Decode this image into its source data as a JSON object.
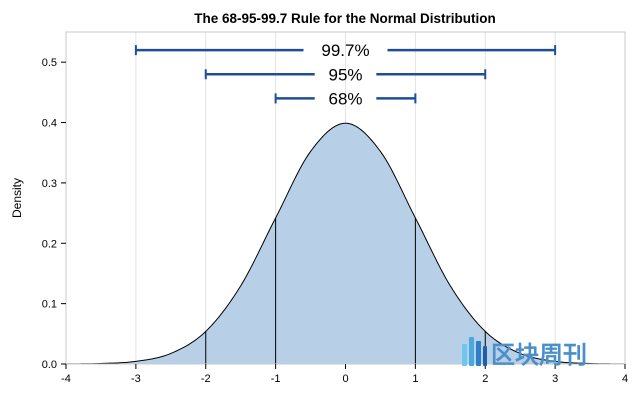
{
  "chart_data": {
    "type": "area",
    "title": "The 68-95-99.7 Rule for the Normal Distribution",
    "xlabel": "",
    "ylabel": "Density",
    "xlim": [
      -4,
      4
    ],
    "ylim": [
      0,
      0.55
    ],
    "x_ticks": [
      -4,
      -3,
      -2,
      -1,
      0,
      1,
      2,
      3,
      4
    ],
    "y_ticks": [
      0.0,
      0.1,
      0.2,
      0.3,
      0.4,
      0.5
    ],
    "y_tick_labels": [
      "0.0",
      "0.1",
      "0.2",
      "0.3",
      "0.4",
      "0.5"
    ],
    "grid": "vertical",
    "series": [
      {
        "x": [
          -4,
          -3.5,
          -3,
          -2.5,
          -2,
          -1.5,
          -1,
          -0.5,
          0,
          0.5,
          1,
          1.5,
          2,
          2.5,
          3,
          3.5,
          4
        ],
        "y": [
          0.0001,
          0.0009,
          0.0044,
          0.0175,
          0.054,
          0.1295,
          0.242,
          0.3521,
          0.3989,
          0.3521,
          0.242,
          0.1295,
          0.054,
          0.0175,
          0.0044,
          0.0009,
          0.0001
        ]
      }
    ],
    "reference_lines_x": [
      -2,
      -1,
      1,
      2
    ],
    "ranges": [
      {
        "label": "99.7%",
        "from": -3,
        "to": 3,
        "y": 0.52
      },
      {
        "label": "95%",
        "from": -2,
        "to": 2,
        "y": 0.48
      },
      {
        "label": "68%",
        "from": -1,
        "to": 1,
        "y": 0.44
      }
    ],
    "colors": {
      "fill": "#b8cfe8",
      "curve": "#000000",
      "range_bar": "#1f4e96",
      "grid": "#e2e2e2",
      "frame": "#c8c8c8"
    }
  },
  "watermark": {
    "text": "区块周刊",
    "icon": "bars-logo-icon",
    "color": "#4a8fc8"
  }
}
